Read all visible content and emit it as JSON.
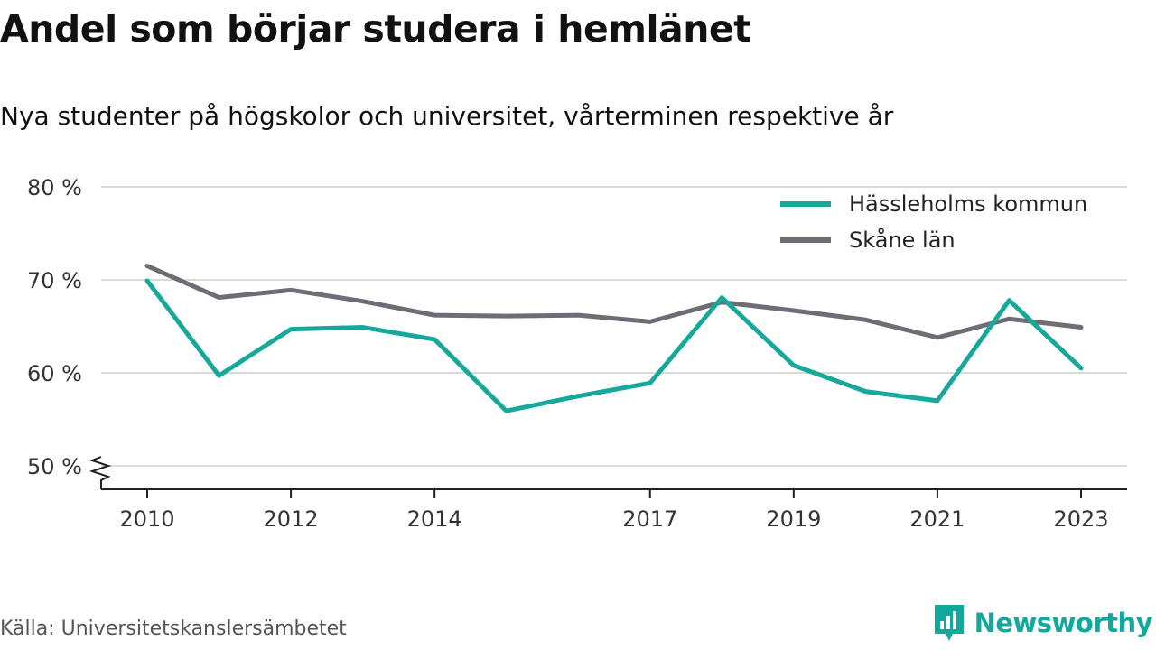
{
  "title": "Andel som börjar studera i hemlänet",
  "subtitle": "Nya studenter på högskolor och universitet, vårterminen respektive år",
  "source": "Källa: Universitetskanslersämbetet",
  "brand": "Newsworthy",
  "colors": {
    "hassleholm": "#16a89b",
    "skane": "#6e6c75",
    "grid": "#d9d9d9",
    "axis": "#222222",
    "brand": "#13a89e"
  },
  "chart_data": {
    "type": "line",
    "x": [
      2010,
      2011,
      2012,
      2013,
      2014,
      2015,
      2016,
      2017,
      2018,
      2019,
      2020,
      2021,
      2022,
      2023
    ],
    "x_ticks": [
      "2010",
      "2012",
      "2014",
      "2017",
      "2019",
      "2021",
      "2023"
    ],
    "x_tick_values": [
      2010,
      2012,
      2014,
      2017,
      2019,
      2021,
      2023
    ],
    "y_ticks": [
      "50 %",
      "60 %",
      "70 %",
      "80 %"
    ],
    "y_tick_values": [
      50,
      60,
      70,
      80
    ],
    "ylim": [
      50,
      80
    ],
    "y_axis_break": true,
    "grid": true,
    "legend_position": "top-right",
    "series": [
      {
        "name": "Hässleholms kommun",
        "color": "#16a89b",
        "values": [
          69.9,
          59.7,
          64.7,
          64.9,
          63.6,
          55.9,
          57.5,
          58.9,
          68.1,
          60.8,
          58.0,
          57.0,
          67.8,
          60.5
        ]
      },
      {
        "name": "Skåne län",
        "color": "#6e6c75",
        "values": [
          71.5,
          68.1,
          68.9,
          67.7,
          66.2,
          66.1,
          66.2,
          65.5,
          67.6,
          66.7,
          65.7,
          63.8,
          65.8,
          64.9
        ]
      }
    ]
  }
}
